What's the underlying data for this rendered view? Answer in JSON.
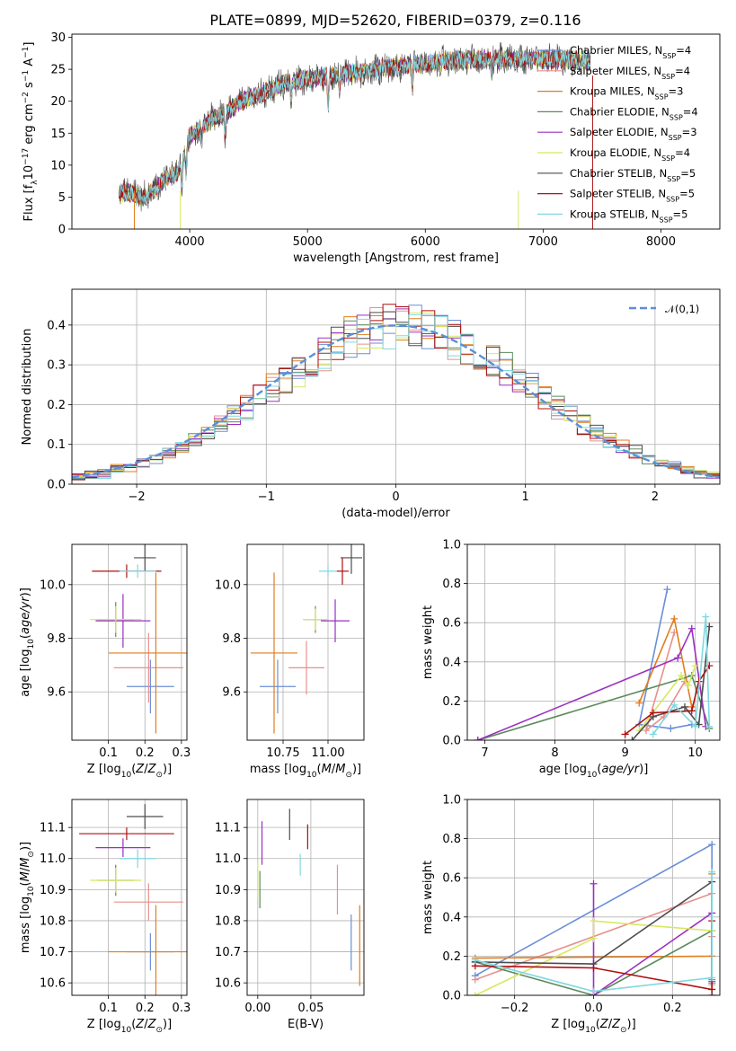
{
  "figure": {
    "title": "PLATE=0899, MJD=52620, FIBERID=0379, z=0.116"
  },
  "colors": {
    "chabrier_miles": "#6a8fd6",
    "salpeter_miles": "#e8908c",
    "kroupa_miles": "#e07d1e",
    "chabrier_elodie": "#5b8a5b",
    "salpeter_elodie": "#9b30c0",
    "kroupa_elodie": "#d8e860",
    "chabrier_stelib": "#4d4d4d",
    "salpeter_stelib": "#b01010",
    "kroupa_stelib": "#80d8e0",
    "normal_curve": "#5b8fd6"
  },
  "chart_data": [
    {
      "id": "spectrum",
      "type": "line",
      "title": "PLATE=0899, MJD=52620, FIBERID=0379, z=0.116",
      "xlabel": "wavelength [Angstrom, rest frame]",
      "ylabel": "Flux [f_λ 10^-17 erg cm^-2 s^-1 A^-1]",
      "xlim": [
        3000,
        8500
      ],
      "ylim": [
        0,
        30.5
      ],
      "xticks": [
        4000,
        5000,
        6000,
        7000,
        8000
      ],
      "yticks": [
        0,
        5,
        10,
        15,
        20,
        25,
        30
      ],
      "grid": false,
      "legend_position": "upper-right",
      "legend": [
        "Chabrier MILES, N_SSP=4",
        "Salpeter MILES, N_SSP=4",
        "Kroupa MILES, N_SSP=3",
        "Chabrier ELODIE, N_SSP=4",
        "Salpeter ELODIE, N_SSP=3",
        "Kroupa ELODIE, N_SSP=4",
        "Chabrier STELIB, N_SSP=5",
        "Salpeter STELIB, N_SSP=5",
        "Kroupa STELIB, N_SSP=5"
      ],
      "continuum_x": [
        3400,
        3500,
        3600,
        3700,
        3800,
        3900,
        3950,
        4000,
        4100,
        4200,
        4300,
        4400,
        4500,
        4600,
        4700,
        4800,
        4900,
        5000,
        5200,
        5400,
        5600,
        5800,
        6000,
        6200,
        6400,
        6600,
        6800,
        7000,
        7200,
        7400
      ],
      "continuum_y": [
        5.8,
        5.6,
        5.0,
        6.0,
        8.0,
        9.0,
        11.5,
        14.5,
        16.0,
        17.5,
        18.0,
        19.5,
        20.5,
        21.0,
        22.0,
        22.8,
        23.0,
        23.5,
        24.0,
        24.5,
        25.0,
        25.5,
        26.0,
        26.3,
        26.5,
        26.5,
        26.7,
        26.5,
        26.5,
        26.2
      ],
      "x_range": [
        3400,
        7400
      ]
    },
    {
      "id": "residual-histogram",
      "type": "histogram",
      "xlabel": "(data-model)/error",
      "ylabel": "Normed distribution",
      "xlim": [
        -2.5,
        2.5
      ],
      "ylim": [
        0,
        0.49
      ],
      "xticks": [
        -2,
        -1,
        0,
        1,
        2
      ],
      "yticks": [
        0.0,
        0.1,
        0.2,
        0.3,
        0.4
      ],
      "grid": true,
      "legend_position": "upper-right",
      "legend": [
        "𝒩(0,1)"
      ],
      "bin_width": 0.1
    },
    {
      "id": "age-vs-Z",
      "type": "errorbar",
      "xlabel": "Z [log10(Z/Z☉)]",
      "ylabel": "age [log10(age/yr)]",
      "xlim": [
        0.0,
        0.315
      ],
      "ylim": [
        9.42,
        10.15
      ],
      "xticks": [
        0.1,
        0.2,
        0.3
      ],
      "yticks": [
        9.6,
        9.8,
        10.0
      ],
      "grid": true,
      "points": [
        {
          "series": "Chabrier MILES",
          "x": 0.215,
          "xerr": 0.065,
          "y": 9.62,
          "yerr": 0.1
        },
        {
          "series": "Salpeter MILES",
          "x": 0.21,
          "xerr": 0.095,
          "y": 9.69,
          "yerr": 0.13
        },
        {
          "series": "Kroupa MILES",
          "x": 0.23,
          "xerr": 0.13,
          "y": 9.745,
          "yerr": 0.3
        },
        {
          "series": "Chabrier ELODIE",
          "x": 0.12,
          "xerr": 0.05,
          "y": 9.87,
          "yerr": 0.065
        },
        {
          "series": "Salpeter ELODIE",
          "x": 0.14,
          "xerr": 0.075,
          "y": 9.865,
          "yerr": 0.1
        },
        {
          "series": "Kroupa ELODIE",
          "x": 0.12,
          "xerr": 0.07,
          "y": 9.87,
          "yerr": 0.05
        },
        {
          "series": "Chabrier STELIB",
          "x": 0.2,
          "xerr": 0.03,
          "y": 10.1,
          "yerr": 0.05
        },
        {
          "series": "Salpeter STELIB",
          "x": 0.15,
          "xerr": 0.095,
          "y": 10.05,
          "yerr": 0.025
        },
        {
          "series": "Kroupa STELIB",
          "x": 0.18,
          "xerr": 0.05,
          "y": 10.05,
          "yerr": 0.025
        }
      ]
    },
    {
      "id": "age-vs-mass",
      "type": "errorbar",
      "xlabel": "mass [log10(M/M☉)]",
      "ylabel": "",
      "xlim": [
        10.55,
        11.2
      ],
      "ylim": [
        9.42,
        10.15
      ],
      "xticks": [
        10.75,
        11.0
      ],
      "yticks": [
        9.6,
        9.8,
        10.0
      ],
      "grid": true,
      "points": [
        {
          "series": "Chabrier MILES",
          "x": 10.72,
          "xerr": 0.1,
          "y": 9.62,
          "yerr": 0.1
        },
        {
          "series": "Salpeter MILES",
          "x": 10.88,
          "xerr": 0.1,
          "y": 9.69,
          "yerr": 0.1
        },
        {
          "series": "Kroupa MILES",
          "x": 10.7,
          "xerr": 0.13,
          "y": 9.745,
          "yerr": 0.3
        },
        {
          "series": "Chabrier ELODIE",
          "x": 10.93,
          "xerr": 0.06,
          "y": 9.87,
          "yerr": 0.05
        },
        {
          "series": "Salpeter ELODIE",
          "x": 11.04,
          "xerr": 0.08,
          "y": 9.865,
          "yerr": 0.08
        },
        {
          "series": "Kroupa ELODIE",
          "x": 10.93,
          "xerr": 0.07,
          "y": 9.87,
          "yerr": 0.04
        },
        {
          "series": "Chabrier STELIB",
          "x": 11.13,
          "xerr": 0.06,
          "y": 10.1,
          "yerr": 0.06
        },
        {
          "series": "Salpeter STELIB",
          "x": 11.08,
          "xerr": 0.035,
          "y": 10.05,
          "yerr": 0.05
        },
        {
          "series": "Kroupa STELIB",
          "x": 11.0,
          "xerr": 0.05,
          "y": 10.05,
          "yerr": 0.02
        }
      ]
    },
    {
      "id": "weight-vs-age",
      "type": "line",
      "xlabel": "age [log10(age/yr)]",
      "ylabel": "mass weight",
      "xlim": [
        6.75,
        10.35
      ],
      "ylim": [
        0,
        1.0
      ],
      "xticks": [
        7,
        8,
        9,
        10
      ],
      "yticks": [
        0.0,
        0.2,
        0.4,
        0.6,
        0.8,
        1.0
      ],
      "grid": true,
      "series": [
        {
          "key": "chabrier_miles",
          "x": [
            9.6,
            9.2,
            9.65,
            9.95
          ],
          "y": [
            0.77,
            0.08,
            0.06,
            0.08
          ]
        },
        {
          "key": "salpeter_miles",
          "x": [
            9.7,
            9.3,
            9.55,
            9.85
          ],
          "y": [
            0.55,
            0.05,
            0.12,
            0.3
          ]
        },
        {
          "key": "kroupa_miles",
          "x": [
            9.2,
            9.7,
            9.95
          ],
          "y": [
            0.19,
            0.62,
            0.17
          ]
        },
        {
          "key": "chabrier_elodie",
          "x": [
            6.9,
            9.95,
            10.2
          ],
          "y": [
            0.0,
            0.33,
            0.06
          ]
        },
        {
          "key": "salpeter_elodie",
          "x": [
            6.9,
            9.75,
            9.95,
            10.15
          ],
          "y": [
            0.0,
            0.42,
            0.57,
            0.07
          ]
        },
        {
          "key": "kroupa_elodie",
          "x": [
            9.2,
            9.8,
            9.9,
            10.0
          ],
          "y": [
            0.05,
            0.33,
            0.28,
            0.38
          ]
        },
        {
          "key": "chabrier_stelib",
          "x": [
            9.1,
            9.4,
            9.85,
            10.05,
            10.2
          ],
          "y": [
            0.0,
            0.12,
            0.17,
            0.08,
            0.58
          ]
        },
        {
          "key": "salpeter_stelib",
          "x": [
            9.0,
            9.4,
            9.95,
            10.05,
            10.2
          ],
          "y": [
            0.03,
            0.14,
            0.15,
            0.3,
            0.38
          ]
        },
        {
          "key": "kroupa_stelib",
          "x": [
            9.4,
            9.7,
            10.0,
            10.15,
            10.2
          ],
          "y": [
            0.03,
            0.18,
            0.07,
            0.63,
            0.07
          ]
        }
      ]
    },
    {
      "id": "mass-vs-Z",
      "type": "errorbar",
      "xlabel": "Z [log10(Z/Z☉)]",
      "ylabel": "mass [log10(M/M☉)]",
      "xlim": [
        0.0,
        0.315
      ],
      "ylim": [
        10.56,
        11.19
      ],
      "xticks": [
        0.1,
        0.2,
        0.3
      ],
      "yticks": [
        10.6,
        10.7,
        10.8,
        10.9,
        11.0,
        11.1
      ],
      "grid": true,
      "points": [
        {
          "series": "Chabrier MILES",
          "x": 0.215,
          "xerr": 0.065,
          "y": 10.7,
          "yerr": 0.06
        },
        {
          "series": "Salpeter MILES",
          "x": 0.21,
          "xerr": 0.095,
          "y": 10.86,
          "yerr": 0.06
        },
        {
          "series": "Kroupa MILES",
          "x": 0.23,
          "xerr": 0.13,
          "y": 10.7,
          "yerr": 0.15
        },
        {
          "series": "Chabrier ELODIE",
          "x": 0.12,
          "xerr": 0.05,
          "y": 10.93,
          "yerr": 0.05
        },
        {
          "series": "Salpeter ELODIE",
          "x": 0.14,
          "xerr": 0.075,
          "y": 11.035,
          "yerr": 0.03
        },
        {
          "series": "Kroupa ELODIE",
          "x": 0.12,
          "xerr": 0.07,
          "y": 10.93,
          "yerr": 0.04
        },
        {
          "series": "Chabrier STELIB",
          "x": 0.2,
          "xerr": 0.05,
          "y": 11.135,
          "yerr": 0.04
        },
        {
          "series": "Salpeter STELIB",
          "x": 0.15,
          "xerr": 0.13,
          "y": 11.08,
          "yerr": 0.02
        },
        {
          "series": "Kroupa STELIB",
          "x": 0.18,
          "xerr": 0.05,
          "y": 11.0,
          "yerr": 0.03
        }
      ]
    },
    {
      "id": "mass-vs-ebv",
      "type": "errorbar",
      "xlabel": "E(B-V)",
      "ylabel": "",
      "xlim": [
        -0.01,
        0.1
      ],
      "ylim": [
        10.56,
        11.19
      ],
      "xticks": [
        0.0,
        0.05
      ],
      "yticks": [
        10.6,
        10.7,
        10.8,
        10.9,
        11.0,
        11.1
      ],
      "grid": true,
      "points": [
        {
          "series": "Chabrier MILES",
          "x": 0.088,
          "xerr": 0,
          "y": 10.73,
          "yerr": 0.09
        },
        {
          "series": "Salpeter MILES",
          "x": 0.075,
          "xerr": 0,
          "y": 10.9,
          "yerr": 0.08
        },
        {
          "series": "Kroupa MILES",
          "x": 0.096,
          "xerr": 0,
          "y": 10.72,
          "yerr": 0.13
        },
        {
          "series": "Chabrier ELODIE",
          "x": 0.002,
          "xerr": 0,
          "y": 10.9,
          "yerr": 0.06
        },
        {
          "series": "Salpeter ELODIE",
          "x": 0.004,
          "xerr": 0,
          "y": 11.05,
          "yerr": 0.07
        },
        {
          "series": "Kroupa ELODIE",
          "x": 0.0,
          "xerr": 0,
          "y": 10.93,
          "yerr": 0.06
        },
        {
          "series": "Chabrier STELIB",
          "x": 0.03,
          "xerr": 0,
          "y": 11.11,
          "yerr": 0.05
        },
        {
          "series": "Salpeter STELIB",
          "x": 0.047,
          "xerr": 0,
          "y": 11.07,
          "yerr": 0.04
        },
        {
          "series": "Kroupa STELIB",
          "x": 0.04,
          "xerr": 0,
          "y": 10.98,
          "yerr": 0.035
        }
      ]
    },
    {
      "id": "weight-vs-Z",
      "type": "line",
      "xlabel": "Z [log10(Z/Z☉)]",
      "ylabel": "mass weight",
      "xlim": [
        -0.32,
        0.32
      ],
      "ylim": [
        0,
        1.0
      ],
      "xticks": [
        -0.2,
        0.0,
        0.2
      ],
      "yticks": [
        0.0,
        0.2,
        0.4,
        0.6,
        0.8,
        1.0
      ],
      "grid": true,
      "series": [
        {
          "key": "chabrier_miles",
          "x": [
            -0.3,
            0.3,
            0.3,
            0.3
          ],
          "y": [
            0.1,
            0.77,
            0.08,
            0.06
          ]
        },
        {
          "key": "salpeter_miles",
          "x": [
            -0.3,
            0.3,
            0.3
          ],
          "y": [
            0.08,
            0.52,
            0.3
          ]
        },
        {
          "key": "kroupa_miles",
          "x": [
            -0.3,
            0.3,
            0.3
          ],
          "y": [
            0.19,
            0.2,
            0.62
          ]
        },
        {
          "key": "chabrier_elodie",
          "x": [
            -0.3,
            0.0,
            0.3
          ],
          "y": [
            0.17,
            0.0,
            0.33
          ]
        },
        {
          "key": "salpeter_elodie",
          "x": [
            0.0,
            0.0,
            0.3,
            0.3
          ],
          "y": [
            0.57,
            0.0,
            0.42,
            0.07
          ]
        },
        {
          "key": "kroupa_elodie",
          "x": [
            -0.3,
            0.0,
            0.0,
            0.3,
            0.3
          ],
          "y": [
            0.0,
            0.29,
            0.38,
            0.33,
            0.05
          ]
        },
        {
          "key": "chabrier_stelib",
          "x": [
            -0.3,
            0.0,
            0.3,
            0.3
          ],
          "y": [
            0.17,
            0.16,
            0.58,
            0.0
          ]
        },
        {
          "key": "salpeter_stelib",
          "x": [
            -0.3,
            0.0,
            0.3,
            0.3
          ],
          "y": [
            0.15,
            0.14,
            0.03,
            0.38
          ]
        },
        {
          "key": "kroupa_stelib",
          "x": [
            -0.3,
            0.0,
            0.3,
            0.3
          ],
          "y": [
            0.18,
            0.02,
            0.09,
            0.63
          ]
        }
      ]
    }
  ]
}
